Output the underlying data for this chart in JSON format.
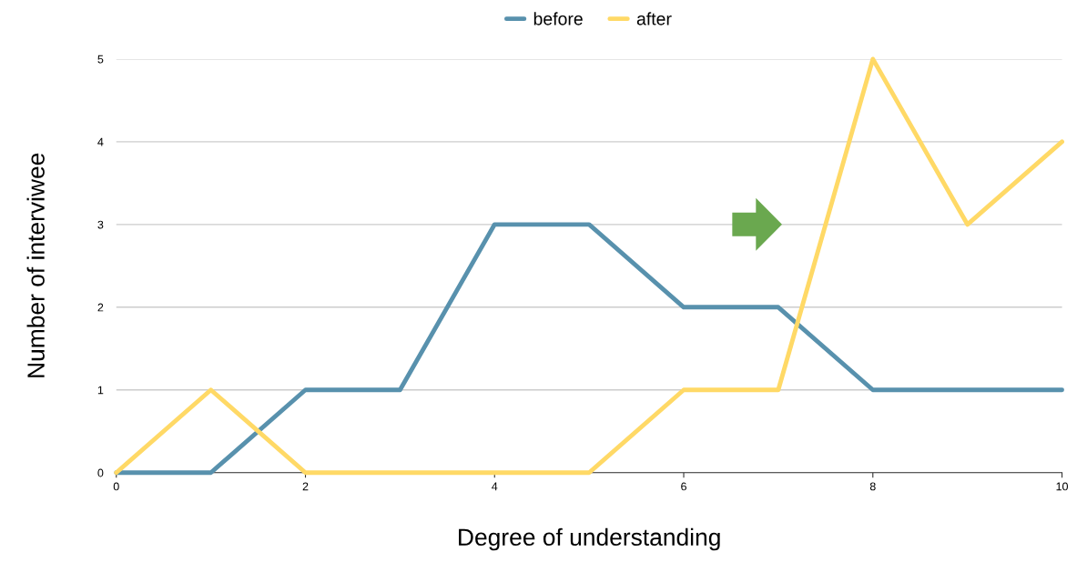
{
  "chart_data": {
    "type": "line",
    "xlabel": "Degree of understanding",
    "ylabel": "Number of interviwee",
    "x": [
      0,
      1,
      2,
      3,
      4,
      5,
      6,
      7,
      8,
      9,
      10
    ],
    "series": [
      {
        "name": "before",
        "color": "#5891ad",
        "values": [
          0,
          0,
          1,
          1,
          3,
          3,
          2,
          2,
          1,
          1,
          1
        ]
      },
      {
        "name": "after",
        "color": "#ffd966",
        "values": [
          0,
          1,
          0,
          0,
          0,
          0,
          1,
          1,
          5,
          3,
          4
        ]
      }
    ],
    "xlim": [
      0,
      10
    ],
    "xticks": [
      0,
      2,
      4,
      6,
      8,
      10
    ],
    "ylim": [
      0,
      5
    ],
    "yticks": [
      0,
      1,
      2,
      3,
      4,
      5
    ],
    "grid": "y",
    "legend": "top",
    "marker": "none",
    "line_style": "solid"
  }
}
